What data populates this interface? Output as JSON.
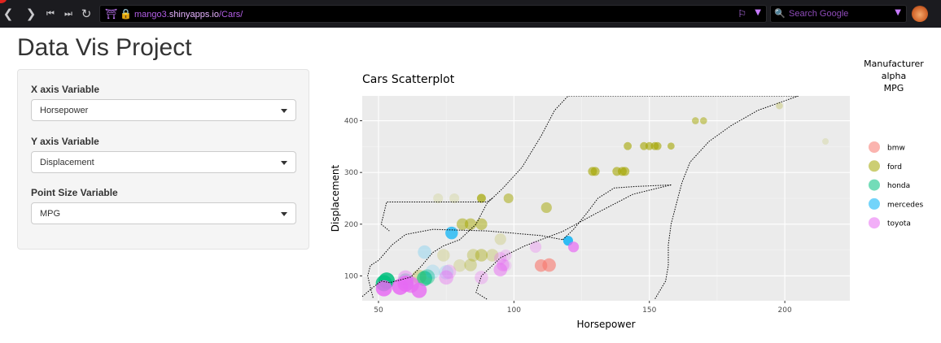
{
  "browser": {
    "url_domain_prefix": "mango3.",
    "url_domain": "shinyapps.io",
    "url_path": "/Cars/",
    "search_placeholder": "Search Google"
  },
  "page": {
    "title": "Data Vis Project"
  },
  "controls": [
    {
      "label": "X axis Variable",
      "value": "Horsepower"
    },
    {
      "label": "Y axis Variable",
      "value": "Displacement"
    },
    {
      "label": "Point Size Variable",
      "value": "MPG"
    }
  ],
  "chart_data": {
    "type": "scatter",
    "title": "Cars Scatterplot",
    "xlabel": "Horsepower",
    "ylabel": "Displacement",
    "xlim": [
      44,
      224
    ],
    "ylim": [
      52,
      448
    ],
    "xticks": [
      50,
      100,
      150,
      200
    ],
    "yticks": [
      100,
      200,
      300,
      400
    ],
    "grid": true,
    "legend_title_lines": [
      "Manufacturer",
      "alpha",
      "MPG"
    ],
    "legend_placement": "right",
    "series": [
      {
        "name": "bmw",
        "color": "#f8766d",
        "points": [
          {
            "x": 110,
            "y": 120,
            "mpg": 24,
            "alpha": 0.6
          },
          {
            "x": 113,
            "y": 121,
            "mpg": 26,
            "alpha": 0.6
          }
        ]
      },
      {
        "name": "ford",
        "color": "#a3a500",
        "points": [
          {
            "x": 198,
            "y": 429,
            "mpg": 12,
            "alpha": 0.25
          },
          {
            "x": 167,
            "y": 400,
            "mpg": 12,
            "alpha": 0.5
          },
          {
            "x": 170,
            "y": 400,
            "mpg": 12,
            "alpha": 0.5
          },
          {
            "x": 142,
            "y": 351,
            "mpg": 14,
            "alpha": 0.6
          },
          {
            "x": 148,
            "y": 351,
            "mpg": 14,
            "alpha": 0.6
          },
          {
            "x": 150,
            "y": 351,
            "mpg": 14,
            "alpha": 0.6
          },
          {
            "x": 152,
            "y": 351,
            "mpg": 14,
            "alpha": 0.6
          },
          {
            "x": 153,
            "y": 351,
            "mpg": 14,
            "alpha": 0.6
          },
          {
            "x": 158,
            "y": 351,
            "mpg": 12,
            "alpha": 0.6
          },
          {
            "x": 129,
            "y": 302,
            "mpg": 16,
            "alpha": 0.6
          },
          {
            "x": 130,
            "y": 302,
            "mpg": 16,
            "alpha": 0.6
          },
          {
            "x": 138,
            "y": 302,
            "mpg": 16,
            "alpha": 0.6
          },
          {
            "x": 140,
            "y": 302,
            "mpg": 16,
            "alpha": 0.6
          },
          {
            "x": 141,
            "y": 302,
            "mpg": 16,
            "alpha": 0.6
          },
          {
            "x": 88,
            "y": 250,
            "mpg": 16,
            "alpha": 0.7
          },
          {
            "x": 98,
            "y": 250,
            "mpg": 18,
            "alpha": 0.5
          },
          {
            "x": 112,
            "y": 232,
            "mpg": 20,
            "alpha": 0.5
          },
          {
            "x": 81,
            "y": 200,
            "mpg": 22,
            "alpha": 0.5
          },
          {
            "x": 84,
            "y": 200,
            "mpg": 22,
            "alpha": 0.5
          },
          {
            "x": 88,
            "y": 200,
            "mpg": 22,
            "alpha": 0.5
          },
          {
            "x": 95,
            "y": 171,
            "mpg": 22,
            "alpha": 0.2
          },
          {
            "x": 88,
            "y": 140,
            "mpg": 24,
            "alpha": 0.4
          },
          {
            "x": 85,
            "y": 140,
            "mpg": 24,
            "alpha": 0.3
          },
          {
            "x": 92,
            "y": 140,
            "mpg": 24,
            "alpha": 0.25
          },
          {
            "x": 84,
            "y": 121,
            "mpg": 24,
            "alpha": 0.3
          },
          {
            "x": 80,
            "y": 120,
            "mpg": 24,
            "alpha": 0.2
          },
          {
            "x": 74,
            "y": 140,
            "mpg": 24,
            "alpha": 0.2
          },
          {
            "x": 72,
            "y": 250,
            "mpg": 18,
            "alpha": 0.15
          },
          {
            "x": 78,
            "y": 250,
            "mpg": 18,
            "alpha": 0.15
          },
          {
            "x": 65,
            "y": 98,
            "mpg": 28,
            "alpha": 0.3
          },
          {
            "x": 215,
            "y": 360,
            "mpg": 10,
            "alpha": 0.15
          }
        ]
      },
      {
        "name": "honda",
        "color": "#00bf7d",
        "points": [
          {
            "x": 53,
            "y": 91,
            "mpg": 34,
            "alpha": 0.85
          },
          {
            "x": 52,
            "y": 86,
            "mpg": 32,
            "alpha": 0.8
          },
          {
            "x": 67,
            "y": 95,
            "mpg": 30,
            "alpha": 0.6
          },
          {
            "x": 68,
            "y": 98,
            "mpg": 30,
            "alpha": 0.4
          },
          {
            "x": 60,
            "y": 90,
            "mpg": 30,
            "alpha": 0.3
          }
        ]
      },
      {
        "name": "mercedes",
        "color": "#00b0f6",
        "points": [
          {
            "x": 77,
            "y": 183,
            "mpg": 24,
            "alpha": 0.7
          },
          {
            "x": 120,
            "y": 168,
            "mpg": 18,
            "alpha": 0.8
          },
          {
            "x": 67,
            "y": 146,
            "mpg": 26,
            "alpha": 0.2
          },
          {
            "x": 70,
            "y": 108,
            "mpg": 28,
            "alpha": 0.15
          },
          {
            "x": 75,
            "y": 107,
            "mpg": 28,
            "alpha": 0.15
          }
        ]
      },
      {
        "name": "toyota",
        "color": "#e76bf3",
        "points": [
          {
            "x": 52,
            "y": 76,
            "mpg": 32,
            "alpha": 0.85
          },
          {
            "x": 58,
            "y": 79,
            "mpg": 34,
            "alpha": 0.85
          },
          {
            "x": 60,
            "y": 85,
            "mpg": 32,
            "alpha": 0.85
          },
          {
            "x": 62,
            "y": 83,
            "mpg": 32,
            "alpha": 0.7
          },
          {
            "x": 65,
            "y": 72,
            "mpg": 30,
            "alpha": 0.8
          },
          {
            "x": 60,
            "y": 96,
            "mpg": 30,
            "alpha": 0.4
          },
          {
            "x": 75,
            "y": 97,
            "mpg": 28,
            "alpha": 0.4
          },
          {
            "x": 76,
            "y": 108,
            "mpg": 28,
            "alpha": 0.3
          },
          {
            "x": 88,
            "y": 97,
            "mpg": 26,
            "alpha": 0.3
          },
          {
            "x": 95,
            "y": 112,
            "mpg": 26,
            "alpha": 0.5
          },
          {
            "x": 96,
            "y": 121,
            "mpg": 24,
            "alpha": 0.4
          },
          {
            "x": 95,
            "y": 134,
            "mpg": 24,
            "alpha": 0.3
          },
          {
            "x": 97,
            "y": 140,
            "mpg": 22,
            "alpha": 0.25
          },
          {
            "x": 108,
            "y": 156,
            "mpg": 22,
            "alpha": 0.3
          },
          {
            "x": 122,
            "y": 156,
            "mpg": 20,
            "alpha": 0.7
          },
          {
            "x": 97,
            "y": 120,
            "mpg": 22,
            "alpha": 0.2
          }
        ]
      }
    ],
    "contours": [
      [
        [
          44,
          60
        ],
        [
          48,
          78
        ],
        [
          51,
          90
        ],
        [
          54,
          87
        ],
        [
          58,
          92
        ],
        [
          62,
          98
        ],
        [
          66,
          120
        ],
        [
          70,
          145
        ],
        [
          74,
          158
        ],
        [
          80,
          170
        ],
        [
          86,
          200
        ],
        [
          90,
          240
        ],
        [
          96,
          270
        ],
        [
          103,
          310
        ],
        [
          110,
          370
        ],
        [
          115,
          420
        ],
        [
          120,
          448
        ],
        [
          205,
          448
        ]
      ],
      [
        [
          205,
          448
        ],
        [
          190,
          420
        ],
        [
          180,
          390
        ],
        [
          172,
          360
        ],
        [
          165,
          320
        ],
        [
          162,
          280
        ],
        [
          160,
          240
        ],
        [
          158,
          200
        ],
        [
          157,
          160
        ],
        [
          157,
          120
        ],
        [
          156,
          90
        ],
        [
          152,
          55
        ]
      ],
      [
        [
          48,
          58
        ],
        [
          47,
          78
        ],
        [
          46,
          100
        ],
        [
          47,
          120
        ],
        [
          50,
          130
        ],
        [
          55,
          160
        ],
        [
          60,
          180
        ],
        [
          70,
          190
        ],
        [
          90,
          187
        ],
        [
          110,
          178
        ],
        [
          118,
          170
        ]
      ],
      [
        [
          118,
          170
        ],
        [
          122,
          190
        ],
        [
          127,
          222
        ],
        [
          131,
          250
        ],
        [
          137,
          270
        ],
        [
          145,
          273
        ],
        [
          158,
          276
        ]
      ],
      [
        [
          158,
          276
        ],
        [
          144,
          258
        ],
        [
          130,
          220
        ],
        [
          118,
          186
        ],
        [
          104,
          158
        ],
        [
          95,
          135
        ],
        [
          88,
          100
        ],
        [
          86,
          68
        ],
        [
          90,
          55
        ]
      ],
      [
        [
          92,
          250
        ],
        [
          90,
          243
        ],
        [
          86,
          243
        ],
        [
          70,
          243
        ],
        [
          53,
          243
        ],
        [
          51,
          200
        ],
        [
          54,
          187
        ]
      ]
    ]
  }
}
